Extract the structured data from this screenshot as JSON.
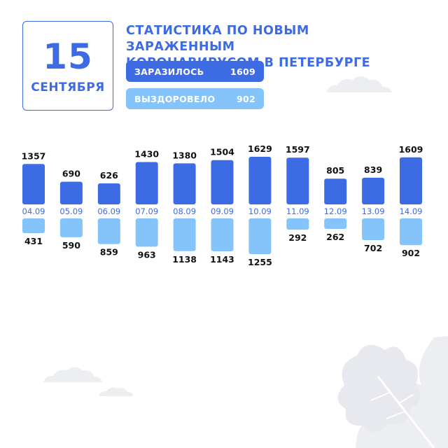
{
  "header": {
    "day": "15",
    "month": "СЕНТЯБРЯ",
    "title_line1": "СТАТИСТИКА ПО НОВЫМ ЗАРАЖЕННЫМ",
    "title_line2": "КОРОНАВИРУСОМ В ПЕТЕРБУРГЕ"
  },
  "summary": {
    "infected_label": "ЗАРАЗИЛОСЬ",
    "infected_value": "1609",
    "recovered_label": "ВЫЗДОРОВЕЛО",
    "recovered_value": "902"
  },
  "colors": {
    "infected": "#3d6be3",
    "recovered": "#84c4fb",
    "accent": "#3d6be3"
  },
  "chart_data": {
    "type": "bar",
    "categories": [
      "04.09",
      "05.09",
      "06.09",
      "07.09",
      "08.09",
      "09.09",
      "10.09",
      "11.09",
      "12.09",
      "13.09",
      "14.09"
    ],
    "series": [
      {
        "name": "ЗАРАЗИЛОСЬ",
        "values": [
          1357,
          690,
          626,
          1430,
          1380,
          1504,
          1629,
          1597,
          805,
          839,
          1609
        ]
      },
      {
        "name": "ВЫЗДОРОВЕЛО",
        "values": [
          431,
          590,
          859,
          963,
          1138,
          1143,
          1255,
          292,
          262,
          702,
          902
        ]
      }
    ],
    "title": "",
    "xlabel": "",
    "ylabel": ""
  }
}
